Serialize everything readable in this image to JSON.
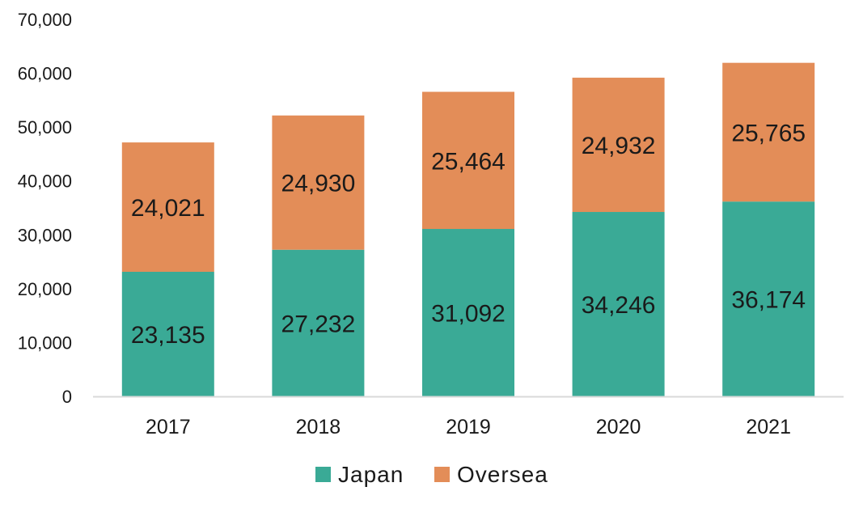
{
  "chart_data": {
    "type": "bar",
    "stacked": true,
    "categories": [
      "2017",
      "2018",
      "2019",
      "2020",
      "2021"
    ],
    "series": [
      {
        "name": "Japan",
        "values": [
          23135,
          27232,
          31092,
          34246,
          36174
        ],
        "labels": [
          "23,135",
          "27,232",
          "31,092",
          "34,246",
          "36,174"
        ],
        "color": "#3aaa96"
      },
      {
        "name": "Oversea",
        "values": [
          24021,
          24930,
          25464,
          24932,
          25765
        ],
        "labels": [
          "24,021",
          "24,930",
          "25,464",
          "24,932",
          "25,765"
        ],
        "color": "#e38d58"
      }
    ],
    "yticks": [
      "0",
      "10,000",
      "20,000",
      "30,000",
      "40,000",
      "50,000",
      "60,000",
      "70,000"
    ],
    "ylim": [
      0,
      70000
    ],
    "title": "",
    "xlabel": "",
    "ylabel": "",
    "grid": false,
    "legend_position": "bottom"
  }
}
